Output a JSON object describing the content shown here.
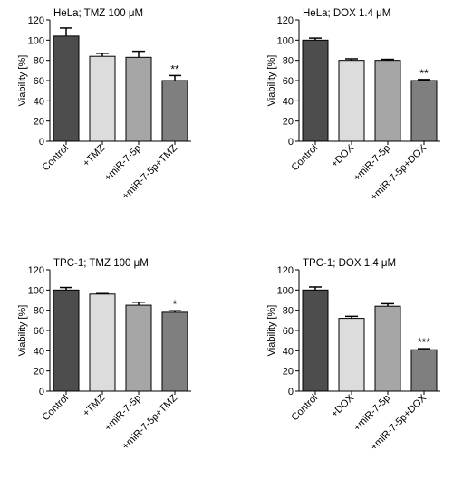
{
  "colors": {
    "control": "#4d4d4d",
    "drug": "#dcdcdc",
    "mir": "#a6a6a6",
    "combo": "#7f7f7f",
    "axis": "#000000"
  },
  "chart_data": [
    {
      "type": "bar",
      "title": "HeLa; TMZ 100 μM",
      "ylabel": "Viability [%]",
      "ylim": [
        0,
        120
      ],
      "yticks": [
        "0",
        "20",
        "40",
        "60",
        "80",
        "100",
        "120"
      ],
      "categories": [
        "Control",
        "+TMZ",
        "+miR-7-5p",
        "+miR-7-5p+TMZ"
      ],
      "values": [
        104,
        84,
        83,
        60
      ],
      "errors": [
        8,
        3,
        6,
        5
      ],
      "annotations": [
        "",
        "",
        "",
        "**"
      ]
    },
    {
      "type": "bar",
      "title": "HeLa; DOX 1.4 μM",
      "ylabel": "Viability [%]",
      "ylim": [
        0,
        120
      ],
      "yticks": [
        "0",
        "20",
        "40",
        "60",
        "80",
        "100",
        "120"
      ],
      "categories": [
        "Control",
        "+DOX",
        "+miR-7-5p",
        "+miR-7-5p+DOX"
      ],
      "values": [
        100,
        80,
        80,
        60
      ],
      "errors": [
        2,
        1.5,
        1,
        1
      ],
      "annotations": [
        "",
        "",
        "",
        "**"
      ]
    },
    {
      "type": "bar",
      "title": "TPC-1; TMZ 100 μM",
      "ylabel": "Viability [%]",
      "ylim": [
        0,
        120
      ],
      "yticks": [
        "0",
        "20",
        "40",
        "60",
        "80",
        "100",
        "120"
      ],
      "categories": [
        "Control",
        "+TMZ",
        "+miR-7-5p",
        "+miR-7-5p+TMZ"
      ],
      "values": [
        100,
        96,
        85,
        78
      ],
      "errors": [
        2.5,
        0.5,
        3,
        1.5
      ],
      "annotations": [
        "",
        "",
        "",
        "*"
      ]
    },
    {
      "type": "bar",
      "title": "TPC-1; DOX 1.4 μM",
      "ylabel": "Viability [%]",
      "ylim": [
        0,
        120
      ],
      "yticks": [
        "0",
        "20",
        "40",
        "60",
        "80",
        "100",
        "120"
      ],
      "categories": [
        "Control",
        "+DOX",
        "+miR-7-5p",
        "+miR-7-5p+DOX"
      ],
      "values": [
        100,
        72,
        84,
        41
      ],
      "errors": [
        3,
        2,
        2.5,
        1
      ],
      "annotations": [
        "",
        "",
        "",
        "***"
      ]
    }
  ]
}
